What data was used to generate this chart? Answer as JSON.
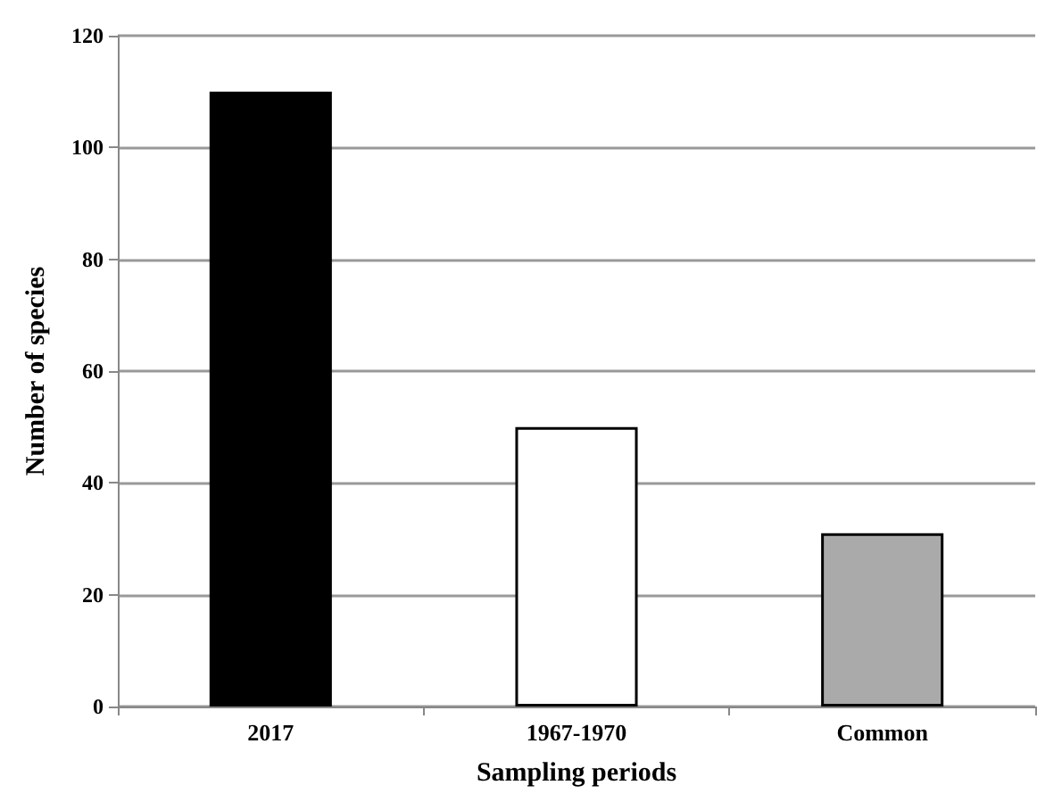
{
  "chart_data": {
    "type": "bar",
    "xlabel": "Sampling periods",
    "ylabel": "Number of species",
    "categories": [
      "2017",
      "1967-1970",
      "Common"
    ],
    "values": [
      110,
      50,
      31
    ],
    "colors": [
      "#000000",
      "#ffffff",
      "#aaaaaa"
    ],
    "ylim": [
      0,
      120
    ],
    "yticks": [
      0,
      20,
      40,
      60,
      80,
      100,
      120
    ],
    "grid": "y"
  }
}
